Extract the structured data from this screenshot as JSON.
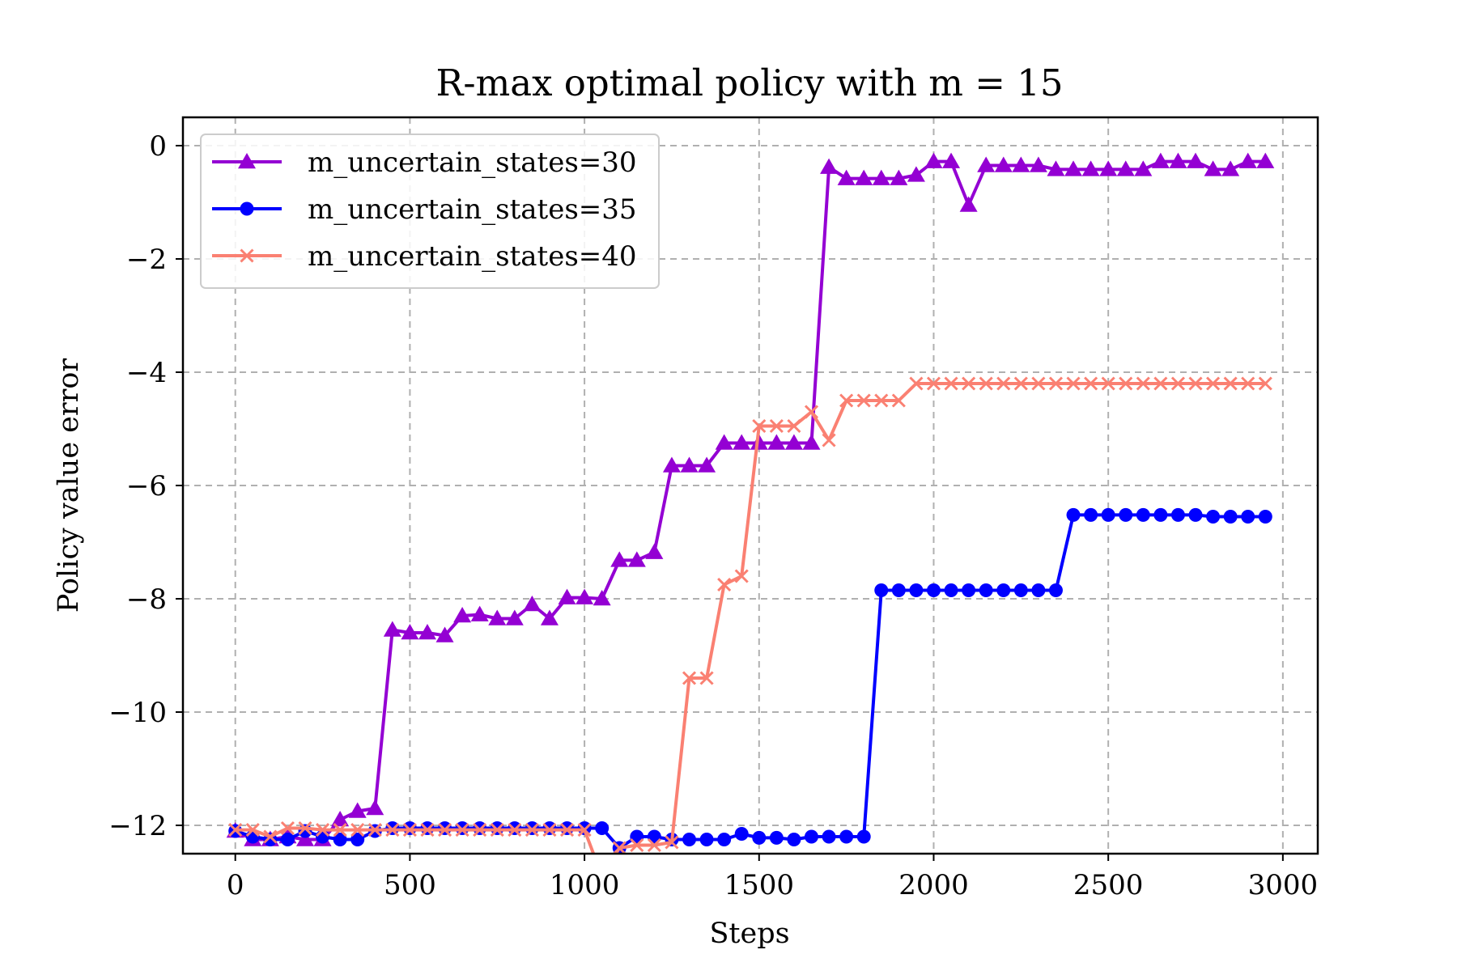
{
  "chart_data": {
    "type": "line",
    "title": "R-max optimal policy with m = 15",
    "xlabel": "Steps",
    "ylabel": "Policy value error",
    "xlim": [
      -150,
      3100
    ],
    "ylim": [
      -12.5,
      0.5
    ],
    "xticks": [
      0,
      500,
      1000,
      1500,
      2000,
      2500,
      3000
    ],
    "yticks": [
      0,
      -2,
      -4,
      -6,
      -8,
      -10,
      -12
    ],
    "xtick_labels": [
      "0",
      "500",
      "1000",
      "1500",
      "2000",
      "2500",
      "3000"
    ],
    "ytick_labels": [
      "0",
      "−2",
      "−4",
      "−6",
      "−8",
      "−10",
      "−12"
    ],
    "grid": true,
    "legend_position": "top-left",
    "x": [
      0,
      50,
      100,
      150,
      200,
      250,
      300,
      350,
      400,
      450,
      500,
      550,
      600,
      650,
      700,
      750,
      800,
      850,
      900,
      950,
      1000,
      1050,
      1100,
      1150,
      1200,
      1250,
      1300,
      1350,
      1400,
      1450,
      1500,
      1550,
      1600,
      1650,
      1700,
      1750,
      1800,
      1850,
      1900,
      1950,
      2000,
      2050,
      2100,
      2150,
      2200,
      2250,
      2300,
      2350,
      2400,
      2450,
      2500,
      2550,
      2600,
      2650,
      2700,
      2750,
      2800,
      2850,
      2900,
      2950
    ],
    "series": [
      {
        "name": "m_uncertain_states=30",
        "color": "#9400d3",
        "marker": "triangle",
        "values": [
          -12.1,
          -12.25,
          -12.25,
          -12.2,
          -12.25,
          -12.25,
          -11.9,
          -11.75,
          -11.7,
          -8.55,
          -8.6,
          -8.6,
          -8.65,
          -8.3,
          -8.28,
          -8.35,
          -8.35,
          -8.1,
          -8.35,
          -7.98,
          -7.98,
          -8.0,
          -7.32,
          -7.32,
          -7.18,
          -5.65,
          -5.65,
          -5.65,
          -5.25,
          -5.25,
          -5.25,
          -5.25,
          -5.25,
          -5.25,
          -0.38,
          -0.58,
          -0.58,
          -0.58,
          -0.58,
          -0.52,
          -0.28,
          -0.28,
          -1.05,
          -0.35,
          -0.35,
          -0.35,
          -0.35,
          -0.42,
          -0.42,
          -0.42,
          -0.42,
          -0.42,
          -0.42,
          -0.28,
          -0.28,
          -0.28,
          -0.42,
          -0.42,
          -0.28,
          -0.28
        ]
      },
      {
        "name": "m_uncertain_states=35",
        "color": "#0000ff",
        "marker": "circle",
        "values": [
          -12.1,
          -12.2,
          -12.25,
          -12.25,
          -12.1,
          -12.2,
          -12.25,
          -12.25,
          -12.1,
          -12.05,
          -12.05,
          -12.05,
          -12.05,
          -12.05,
          -12.05,
          -12.05,
          -12.05,
          -12.05,
          -12.05,
          -12.05,
          -12.05,
          -12.05,
          -12.4,
          -12.2,
          -12.2,
          -12.25,
          -12.25,
          -12.25,
          -12.25,
          -12.15,
          -12.22,
          -12.22,
          -12.25,
          -12.2,
          -12.2,
          -12.2,
          -12.2,
          -7.85,
          -7.85,
          -7.85,
          -7.85,
          -7.85,
          -7.85,
          -7.85,
          -7.85,
          -7.85,
          -7.85,
          -7.85,
          -6.52,
          -6.52,
          -6.52,
          -6.52,
          -6.52,
          -6.52,
          -6.52,
          -6.52,
          -6.55,
          -6.55,
          -6.55,
          -6.55
        ]
      },
      {
        "name": "m_uncertain_states=40",
        "color": "#fa8072",
        "marker": "x",
        "values": [
          -12.08,
          -12.08,
          -12.2,
          -12.05,
          -12.05,
          -12.08,
          -12.08,
          -12.08,
          -12.08,
          -12.08,
          -12.08,
          -12.08,
          -12.08,
          -12.08,
          -12.08,
          -12.08,
          -12.08,
          -12.08,
          -12.08,
          -12.08,
          -12.08,
          -12.9,
          -12.4,
          -12.35,
          -12.35,
          -12.3,
          -9.4,
          -9.4,
          -7.75,
          -7.6,
          -4.95,
          -4.95,
          -4.95,
          -4.7,
          -5.2,
          -4.5,
          -4.5,
          -4.5,
          -4.5,
          -4.2,
          -4.2,
          -4.2,
          -4.2,
          -4.2,
          -4.2,
          -4.2,
          -4.2,
          -4.2,
          -4.2,
          -4.2,
          -4.2,
          -4.2,
          -4.2,
          -4.2,
          -4.2,
          -4.2,
          -4.2,
          -4.2,
          -4.2,
          -4.2
        ]
      }
    ]
  }
}
